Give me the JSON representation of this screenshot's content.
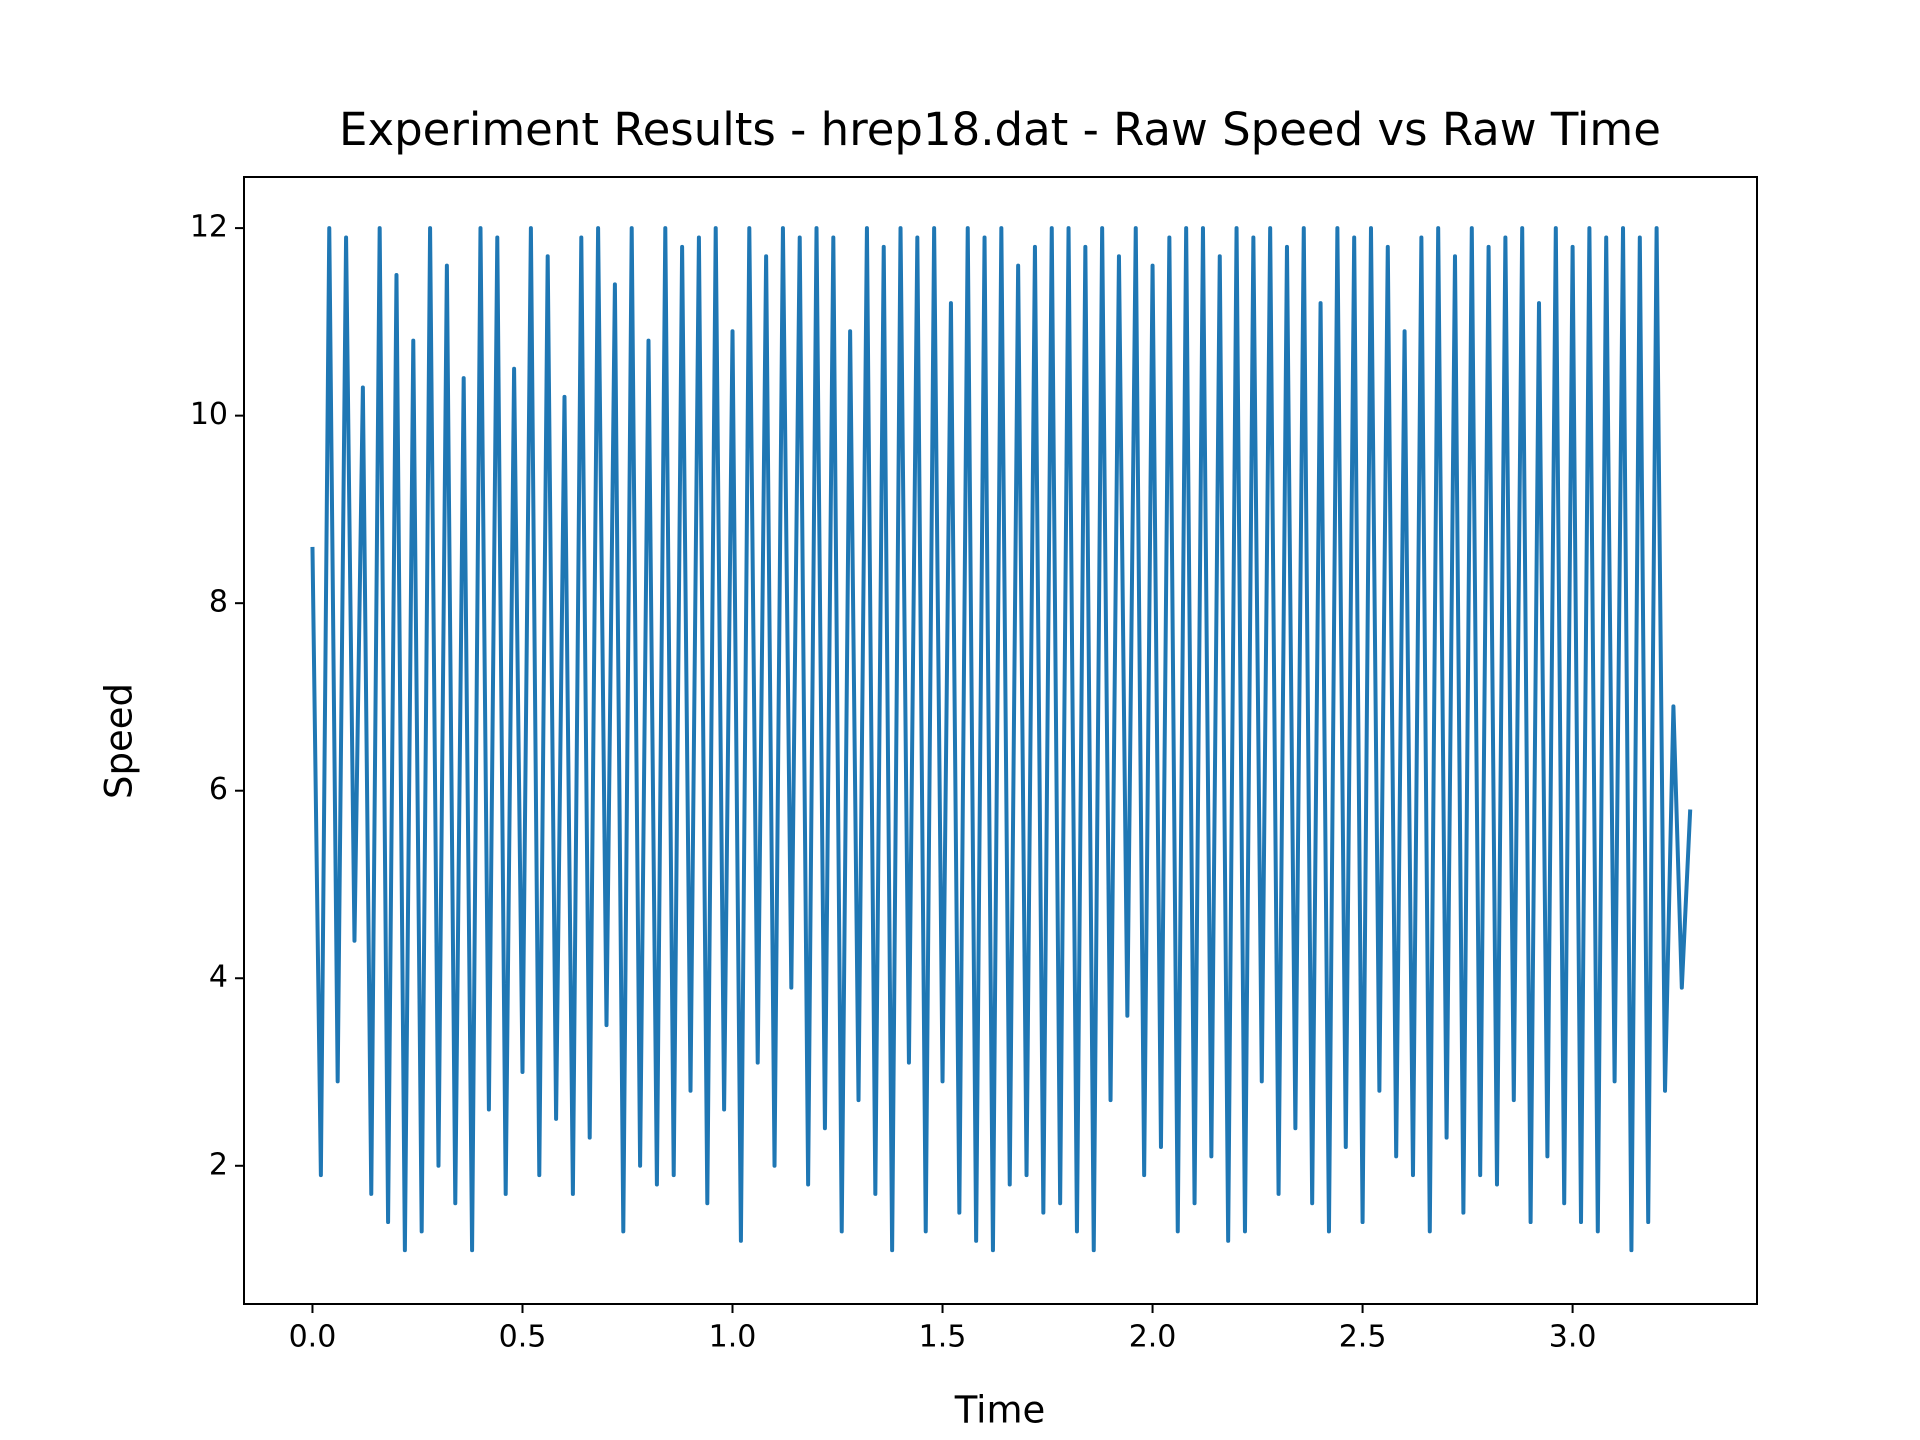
{
  "chart_data": {
    "type": "line",
    "title": "Experiment Results - hrep18.dat - Raw Speed vs Raw Time",
    "xlabel": "Time",
    "ylabel": "Speed",
    "color": "#1f77b4",
    "x": [
      0,
      0.02,
      0.04,
      0.06,
      0.08,
      0.1,
      0.12,
      0.14,
      0.16,
      0.18,
      0.2,
      0.22,
      0.24,
      0.26,
      0.28,
      0.3,
      0.32,
      0.34,
      0.36,
      0.38,
      0.4,
      0.42,
      0.44,
      0.46,
      0.48,
      0.5,
      0.52,
      0.54,
      0.56,
      0.58,
      0.6,
      0.62,
      0.64,
      0.66,
      0.68,
      0.7,
      0.72,
      0.74,
      0.76,
      0.78,
      0.8,
      0.82,
      0.84,
      0.86,
      0.88,
      0.9,
      0.92,
      0.94,
      0.96,
      0.98,
      1,
      1.02,
      1.04,
      1.06,
      1.08,
      1.1,
      1.12,
      1.14,
      1.16,
      1.18,
      1.2,
      1.22,
      1.24,
      1.26,
      1.28,
      1.3,
      1.32,
      1.34,
      1.36,
      1.38,
      1.4,
      1.42,
      1.44,
      1.46,
      1.48,
      1.5,
      1.52,
      1.54,
      1.56,
      1.58,
      1.6,
      1.62,
      1.64,
      1.66,
      1.68,
      1.7,
      1.72,
      1.74,
      1.76,
      1.78,
      1.8,
      1.82,
      1.84,
      1.86,
      1.88,
      1.9,
      1.92,
      1.94,
      1.96,
      1.98,
      2,
      2.02,
      2.04,
      2.06,
      2.08,
      2.1,
      2.12,
      2.14,
      2.16,
      2.18,
      2.2,
      2.22,
      2.24,
      2.26,
      2.28,
      2.3,
      2.32,
      2.34,
      2.36,
      2.38,
      2.4,
      2.42,
      2.44,
      2.46,
      2.48,
      2.5,
      2.52,
      2.54,
      2.56,
      2.58,
      2.6,
      2.62,
      2.64,
      2.66,
      2.68,
      2.7,
      2.72,
      2.74,
      2.76,
      2.78,
      2.8,
      2.82,
      2.84,
      2.86,
      2.88,
      2.9,
      2.92,
      2.94,
      2.96,
      2.98,
      3,
      3.02,
      3.04,
      3.06,
      3.08,
      3.1,
      3.12,
      3.14,
      3.16,
      3.18,
      3.2,
      3.22,
      3.24,
      3.26,
      3.28
    ],
    "values": [
      8.6,
      1.9,
      12,
      2.9,
      11.9,
      4.4,
      10.3,
      1.7,
      12,
      1.4,
      11.5,
      1.1,
      10.8,
      1.3,
      12,
      2.0,
      11.6,
      1.6,
      10.4,
      1.1,
      12,
      2.6,
      11.9,
      1.7,
      10.5,
      3.0,
      12,
      1.9,
      11.7,
      2.5,
      10.2,
      1.7,
      11.9,
      2.3,
      12,
      3.5,
      11.4,
      1.3,
      12,
      2.0,
      10.8,
      1.8,
      12,
      1.9,
      11.8,
      2.8,
      11.9,
      1.6,
      12,
      2.6,
      10.9,
      1.2,
      12,
      3.1,
      11.7,
      2.0,
      12,
      3.9,
      11.9,
      1.8,
      12,
      2.4,
      11.9,
      1.3,
      10.9,
      2.7,
      12,
      1.7,
      11.8,
      1.1,
      12,
      3.1,
      11.9,
      1.3,
      12,
      2.9,
      11.2,
      1.5,
      12,
      1.2,
      11.9,
      1.1,
      12,
      1.8,
      11.6,
      1.9,
      11.8,
      1.5,
      12,
      1.6,
      12,
      1.3,
      11.8,
      1.1,
      12,
      2.7,
      11.7,
      3.6,
      12,
      1.9,
      11.6,
      2.2,
      11.9,
      1.3,
      12,
      1.6,
      12,
      2.1,
      11.7,
      1.2,
      12,
      1.3,
      11.9,
      2.9,
      12,
      1.7,
      11.8,
      2.4,
      12,
      1.6,
      11.2,
      1.3,
      12,
      2.2,
      11.9,
      1.4,
      12,
      2.8,
      11.8,
      2.1,
      10.9,
      1.9,
      11.9,
      1.3,
      12,
      2.3,
      11.7,
      1.5,
      12,
      1.9,
      11.8,
      1.8,
      11.9,
      2.7,
      12,
      1.4,
      11.2,
      2.1,
      12,
      1.6,
      11.8,
      1.4,
      12,
      1.3,
      11.9,
      2.9,
      12,
      1.1,
      11.9,
      1.4,
      12,
      2.8,
      6.9,
      3.9,
      5.8
    ],
    "xlim": [
      -0.163,
      3.439
    ],
    "ylim": [
      0.526,
      12.545
    ],
    "xticks": [
      {
        "value": 0,
        "label": "0.0"
      },
      {
        "value": 0.5,
        "label": "0.5"
      },
      {
        "value": 1,
        "label": "1.0"
      },
      {
        "value": 1.5,
        "label": "1.5"
      },
      {
        "value": 2,
        "label": "2.0"
      },
      {
        "value": 2.5,
        "label": "2.5"
      },
      {
        "value": 3,
        "label": "3.0"
      }
    ],
    "yticks": [
      2,
      4,
      6,
      8,
      10,
      12
    ]
  }
}
